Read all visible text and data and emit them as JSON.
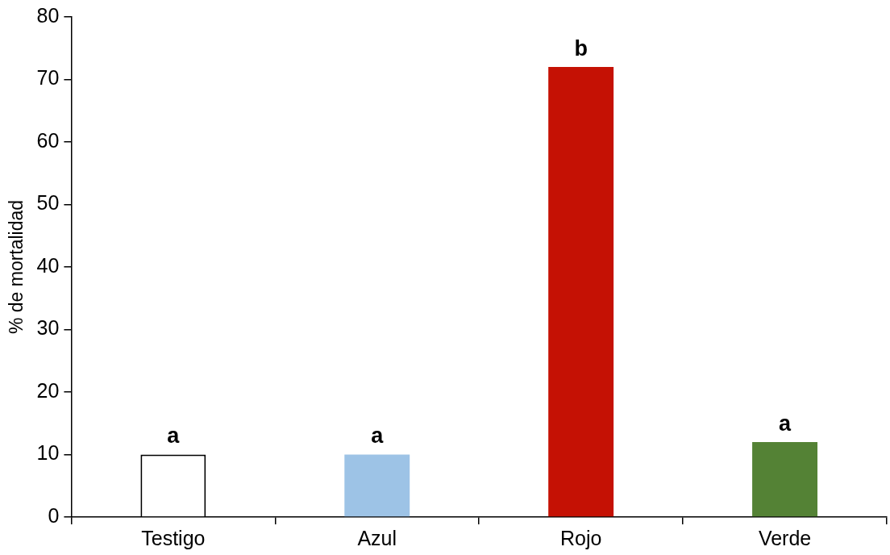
{
  "chart_data": {
    "type": "bar",
    "ylabel": "% de mortalidad",
    "categories": [
      "Testigo",
      "Azul",
      "Rojo",
      "Verde"
    ],
    "values": [
      10,
      10,
      72,
      12
    ],
    "colors": [
      "#ffffff",
      "#9dc3e6",
      "#c51104",
      "#548235"
    ],
    "ylim": [
      0,
      80
    ],
    "yticks": [
      0,
      10,
      20,
      30,
      40,
      50,
      60,
      70,
      80
    ],
    "grid": false,
    "legend": false,
    "annotations": [
      {
        "text": "a",
        "x": "Testigo",
        "y": 10
      },
      {
        "text": "a",
        "x": "Azul",
        "y": 10
      },
      {
        "text": "b",
        "x": "Rojo",
        "y": 72
      },
      {
        "text": "a",
        "x": "Verde",
        "y": 12
      }
    ]
  }
}
